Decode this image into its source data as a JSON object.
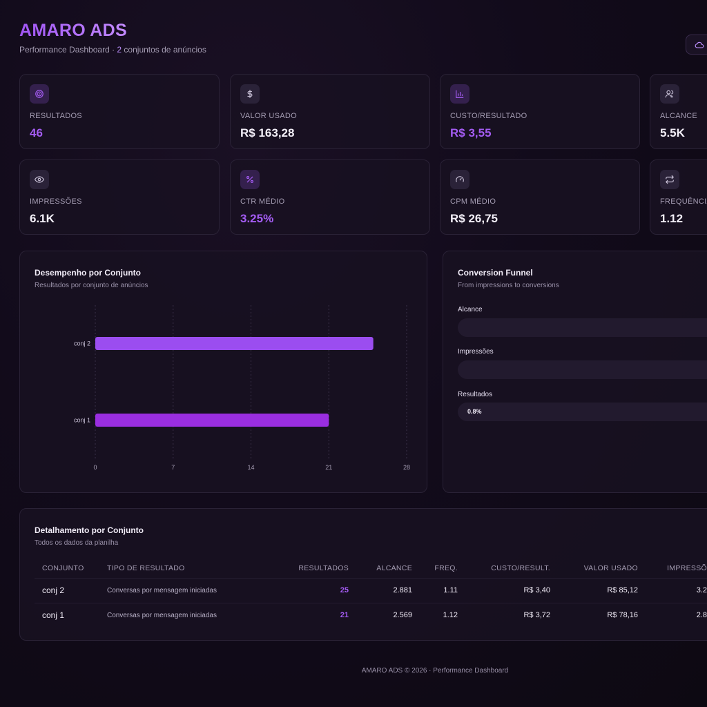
{
  "header": {
    "brand": "AMARO ADS",
    "subtitle_prefix": "Performance Dashboard · ",
    "subtitle_count": "2",
    "subtitle_suffix": " conjuntos de anúncios",
    "sync_icon": "cloud-icon"
  },
  "kpis": [
    {
      "label": "RESULTADOS",
      "value": "46",
      "icon": "target-icon",
      "accent": true
    },
    {
      "label": "VALOR USADO",
      "value": "R$ 163,28",
      "icon": "dollar-icon",
      "accent": false
    },
    {
      "label": "CUSTO/RESULTADO",
      "value": "R$ 3,55",
      "icon": "bar-chart-icon",
      "accent": true
    },
    {
      "label": "ALCANCE",
      "value": "5.5K",
      "icon": "users-icon",
      "accent": false
    },
    {
      "label": "IMPRESSÕES",
      "value": "6.1K",
      "icon": "eye-icon",
      "accent": false
    },
    {
      "label": "CTR MÉDIO",
      "value": "3.25%",
      "icon": "percent-icon",
      "accent": true
    },
    {
      "label": "CPM MÉDIO",
      "value": "R$ 26,75",
      "icon": "gauge-icon",
      "accent": false
    },
    {
      "label": "FREQUÊNCIA",
      "value": "1.12",
      "icon": "repeat-icon",
      "accent": false
    }
  ],
  "bar_chart": {
    "title": "Desempenho por Conjunto",
    "subtitle": "Resultados por conjunto de anúncios"
  },
  "chart_data": {
    "type": "bar",
    "orientation": "horizontal",
    "categories": [
      "conj 2",
      "conj 1"
    ],
    "values": [
      25,
      21
    ],
    "xlim": [
      0,
      28
    ],
    "xticks": [
      0,
      7,
      14,
      21,
      28
    ],
    "grid": "vertical dashed",
    "colors": [
      "#9b4df0",
      "#9a2ee0"
    ]
  },
  "funnel": {
    "title": "Conversion Funnel",
    "subtitle": "From impressions to conversions",
    "stages": [
      {
        "label": "Alcance",
        "pct_text": ""
      },
      {
        "label": "Impressões",
        "pct_text": ""
      },
      {
        "label": "Resultados",
        "pct_text": "0.8%"
      }
    ]
  },
  "table": {
    "title": "Detalhamento por Conjunto",
    "subtitle": "Todos os dados da planilha",
    "columns": [
      "CONJUNTO",
      "TIPO DE RESULTADO",
      "RESULTADOS",
      "ALCANCE",
      "FREQ.",
      "CUSTO/RESULT.",
      "VALOR USADO",
      "IMPRESSÕ"
    ],
    "rows": [
      [
        "conj 2",
        "Conversas por mensagem iniciadas",
        "25",
        "2.881",
        "1.11",
        "R$ 3,40",
        "R$ 85,12",
        "3.2"
      ],
      [
        "conj 1",
        "Conversas por mensagem iniciadas",
        "21",
        "2.569",
        "1.12",
        "R$ 3,72",
        "R$ 78,16",
        "2.8"
      ]
    ]
  },
  "footer": "AMARO ADS © 2026 · Performance Dashboard",
  "colors": {
    "accent": "#a45cf3",
    "background": "#120b1b",
    "card": "#18112a"
  }
}
